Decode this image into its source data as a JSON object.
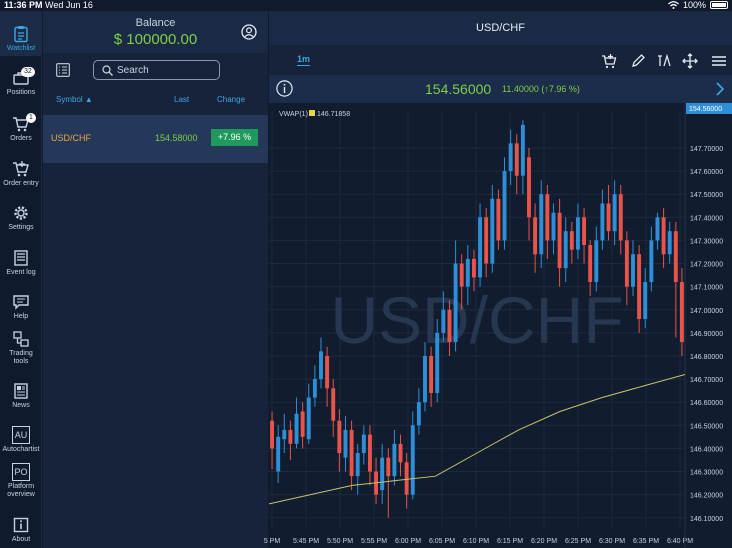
{
  "status_bar": {
    "time": "11:36 PM",
    "date": "Wed Jun 16",
    "battery": "100%"
  },
  "sidebar": {
    "items": [
      {
        "label": "Watchlist",
        "icon": "clipboard-icon"
      },
      {
        "label": "Positions",
        "icon": "briefcase-icon",
        "badge": "32"
      },
      {
        "label": "Orders",
        "icon": "cart-icon",
        "badge": "1"
      },
      {
        "label": "Order entry",
        "icon": "cart-plus-icon"
      },
      {
        "label": "Settings",
        "icon": "gear-icon"
      },
      {
        "label": "Event log",
        "icon": "log-icon"
      },
      {
        "label": "Help",
        "icon": "chat-icon"
      },
      {
        "label": "Trading tools",
        "icon": "tools-icon"
      },
      {
        "label": "News",
        "icon": "news-icon"
      },
      {
        "label": "Autochartist",
        "icon": "au-icon",
        "glyph": "AU"
      },
      {
        "label": "Platform overview",
        "icon": "po-icon",
        "glyph": "PO"
      },
      {
        "label": "About",
        "icon": "about-icon"
      }
    ]
  },
  "watchlist": {
    "balance_label": "Balance",
    "balance_value": "$ 100000.00",
    "search_placeholder": "Search",
    "columns": {
      "symbol": "Symbol",
      "last": "Last",
      "change": "Change"
    },
    "sort_indicator": "▲",
    "rows": [
      {
        "symbol": "USD/CHF",
        "last": "154.58000",
        "change": "+7.96 %"
      }
    ]
  },
  "chart_panel": {
    "title": "USD/CHF",
    "timeframe": "1m",
    "price": "154.56000",
    "change": "11.40000 (↑7.96 %)",
    "watermark": "USD/CHF",
    "indicator_label": "VWAP(1)",
    "indicator_value": "146.71858",
    "current_price_tag": "154.56000"
  },
  "chart_data": {
    "type": "candlestick",
    "y_ticks": [
      "147.70000",
      "147.60000",
      "147.50000",
      "147.40000",
      "147.30000",
      "147.20000",
      "147.10000",
      "147.00000",
      "146.90000",
      "146.80000",
      "146.70000",
      "146.60000",
      "146.50000",
      "146.40000",
      "146.30000",
      "146.20000",
      "146.10000"
    ],
    "ylim": [
      146.06,
      147.86
    ],
    "x_ticks": [
      "5 PM",
      "5:45 PM",
      "5:50 PM",
      "5:55 PM",
      "6:00 PM",
      "6:05 PM",
      "6:10 PM",
      "6:15 PM",
      "6:20 PM",
      "6:25 PM",
      "6:30 PM",
      "6:35 PM",
      "6:40 PM"
    ],
    "colors": {
      "up": "#2e8fd6",
      "down": "#e8534a",
      "vwap": "#c9c46a",
      "grid": "#1c2a40"
    },
    "candles": [
      [
        146.52,
        146.4,
        146.56,
        146.31
      ],
      [
        146.3,
        146.45,
        146.5,
        146.25
      ],
      [
        146.44,
        146.48,
        146.55,
        146.38
      ],
      [
        146.48,
        146.42,
        146.52,
        146.35
      ],
      [
        146.42,
        146.55,
        146.62,
        146.4
      ],
      [
        146.56,
        146.45,
        146.6,
        146.4
      ],
      [
        146.44,
        146.62,
        146.68,
        146.42
      ],
      [
        146.62,
        146.7,
        146.76,
        146.58
      ],
      [
        146.7,
        146.82,
        146.88,
        146.66
      ],
      [
        146.8,
        146.66,
        146.84,
        146.58
      ],
      [
        146.66,
        146.52,
        146.7,
        146.45
      ],
      [
        146.52,
        146.38,
        146.57,
        146.3
      ],
      [
        146.36,
        146.48,
        146.54,
        146.3
      ],
      [
        146.48,
        146.28,
        146.52,
        146.22
      ],
      [
        146.28,
        146.38,
        146.42,
        146.2
      ],
      [
        146.38,
        146.46,
        146.5,
        146.33
      ],
      [
        146.46,
        146.3,
        146.5,
        146.24
      ],
      [
        146.3,
        146.2,
        146.36,
        146.16
      ],
      [
        146.22,
        146.36,
        146.42,
        146.16
      ],
      [
        146.36,
        146.28,
        146.4,
        146.1
      ],
      [
        146.28,
        146.42,
        146.48,
        146.24
      ],
      [
        146.42,
        146.34,
        146.46,
        146.28
      ],
      [
        146.34,
        146.2,
        146.38,
        146.14
      ],
      [
        146.2,
        146.5,
        146.56,
        146.18
      ],
      [
        146.5,
        146.6,
        146.66,
        146.46
      ],
      [
        146.6,
        146.8,
        146.86,
        146.56
      ],
      [
        146.8,
        146.64,
        146.84,
        146.58
      ],
      [
        146.64,
        146.9,
        146.96,
        146.6
      ],
      [
        146.9,
        147.0,
        147.08,
        146.86
      ],
      [
        147.0,
        146.86,
        147.04,
        146.8
      ],
      [
        146.86,
        147.2,
        147.3,
        146.82
      ],
      [
        147.2,
        147.1,
        147.24,
        147.0
      ],
      [
        147.1,
        147.22,
        147.28,
        147.02
      ],
      [
        147.22,
        147.14,
        147.26,
        147.08
      ],
      [
        147.14,
        147.4,
        147.46,
        147.1
      ],
      [
        147.4,
        147.2,
        147.44,
        147.14
      ],
      [
        147.2,
        147.48,
        147.54,
        147.16
      ],
      [
        147.48,
        147.3,
        147.52,
        147.26
      ],
      [
        147.3,
        147.6,
        147.66,
        147.26
      ],
      [
        147.6,
        147.72,
        147.78,
        147.54
      ],
      [
        147.72,
        147.58,
        147.76,
        147.5
      ],
      [
        147.58,
        147.8,
        147.82,
        147.5
      ],
      [
        147.66,
        147.4,
        147.7,
        147.3
      ],
      [
        147.4,
        147.24,
        147.46,
        147.16
      ],
      [
        147.24,
        147.5,
        147.56,
        147.18
      ],
      [
        147.5,
        147.3,
        147.54,
        147.22
      ],
      [
        147.3,
        147.42,
        147.46,
        147.24
      ],
      [
        147.42,
        147.18,
        147.48,
        147.1
      ],
      [
        147.18,
        147.34,
        147.4,
        147.12
      ],
      [
        147.34,
        147.26,
        147.38,
        147.2
      ],
      [
        147.26,
        147.4,
        147.46,
        147.22
      ],
      [
        147.4,
        147.28,
        147.44,
        147.2
      ],
      [
        147.28,
        147.12,
        147.3,
        147.06
      ],
      [
        147.12,
        147.3,
        147.36,
        147.08
      ],
      [
        147.3,
        147.46,
        147.52,
        147.26
      ],
      [
        147.46,
        147.34,
        147.54,
        147.3
      ],
      [
        147.34,
        147.5,
        147.56,
        147.28
      ],
      [
        147.5,
        147.3,
        147.54,
        147.24
      ],
      [
        147.3,
        147.1,
        147.34,
        147.02
      ],
      [
        147.1,
        147.24,
        147.3,
        147.06
      ],
      [
        147.24,
        146.96,
        147.28,
        146.9
      ],
      [
        146.96,
        147.12,
        147.18,
        146.92
      ],
      [
        147.12,
        147.3,
        147.36,
        147.08
      ],
      [
        147.3,
        147.4,
        147.42,
        147.26
      ],
      [
        147.4,
        147.24,
        147.44,
        147.18
      ],
      [
        147.24,
        147.34,
        147.38,
        147.2
      ],
      [
        147.34,
        147.12,
        147.38,
        146.88
      ],
      [
        147.12,
        146.86,
        147.18,
        146.8
      ]
    ],
    "vwap": [
      [
        "0",
        146.16
      ],
      [
        "0.1",
        146.2
      ],
      [
        "0.2",
        146.24
      ],
      [
        "0.3",
        146.26
      ],
      [
        "0.4",
        146.28
      ],
      [
        "0.5",
        146.38
      ],
      [
        "0.6",
        146.48
      ],
      [
        "0.7",
        146.56
      ],
      [
        "0.8",
        146.62
      ],
      [
        "0.9",
        146.67
      ],
      [
        "1",
        146.72
      ]
    ]
  }
}
